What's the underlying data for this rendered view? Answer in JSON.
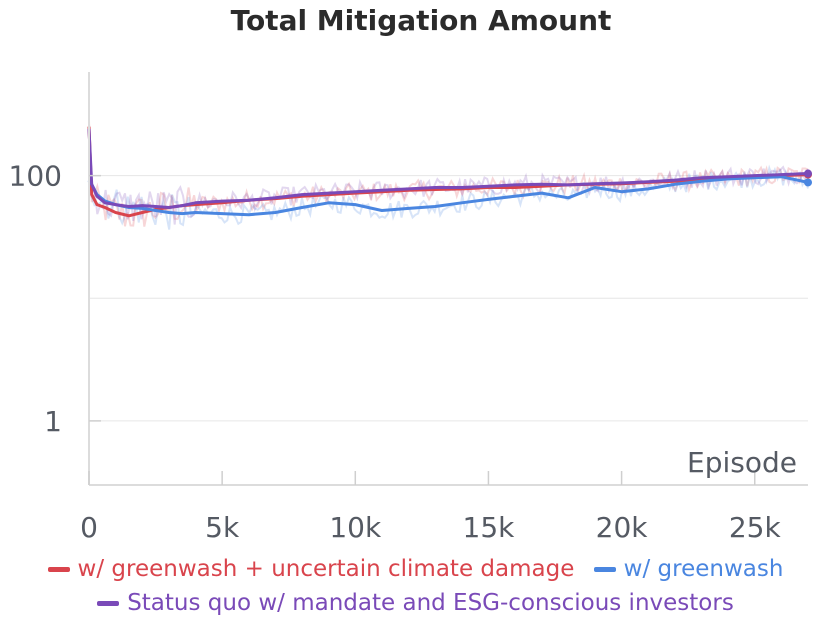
{
  "chart_data": {
    "type": "line",
    "title": "Total Mitigation Amount",
    "xlabel": "Episode",
    "ylabel": "",
    "yscale": "log",
    "xlim": [
      0,
      27000
    ],
    "ylim": [
      0.3,
      700
    ],
    "x_ticks": [
      0,
      5000,
      10000,
      15000,
      20000,
      25000
    ],
    "x_tick_labels": [
      "0",
      "5k",
      "10k",
      "15k",
      "20k",
      "25k"
    ],
    "y_ticks": [
      1,
      100
    ],
    "y_tick_labels": [
      "1",
      "100"
    ],
    "y_minor_gridlines": [
      10
    ],
    "grid": true,
    "legend_position": "bottom",
    "series": [
      {
        "name": "w/ greenwash + uncertain climate damage",
        "color": "#d9444c",
        "x": [
          0,
          100,
          300,
          600,
          1000,
          1500,
          2000,
          2500,
          3000,
          3500,
          4000,
          5000,
          6000,
          7000,
          8000,
          9000,
          10000,
          11000,
          12000,
          13000,
          14000,
          15000,
          16000,
          17000,
          18000,
          19000,
          20000,
          21000,
          22000,
          23000,
          24000,
          25000,
          26000,
          27000
        ],
        "values": [
          250,
          70,
          58,
          55,
          50,
          47,
          50,
          53,
          55,
          57,
          58,
          60,
          63,
          65,
          68,
          70,
          72,
          74,
          76,
          77,
          78,
          80,
          80,
          82,
          84,
          85,
          86,
          88,
          90,
          92,
          95,
          98,
          100,
          102
        ]
      },
      {
        "name": "w/ greenwash",
        "color": "#4a86e0",
        "x": [
          0,
          100,
          300,
          600,
          1000,
          1500,
          2000,
          2500,
          3000,
          3500,
          4000,
          5000,
          6000,
          7000,
          8000,
          9000,
          10000,
          11000,
          12000,
          13000,
          14000,
          15000,
          16000,
          17000,
          18000,
          19000,
          20000,
          21000,
          22000,
          23000,
          24000,
          25000,
          26000,
          27000
        ],
        "values": [
          90,
          85,
          70,
          62,
          58,
          55,
          54,
          52,
          50,
          49,
          50,
          49,
          48,
          50,
          55,
          60,
          58,
          52,
          54,
          56,
          60,
          64,
          68,
          72,
          66,
          80,
          74,
          78,
          85,
          90,
          94,
          96,
          98,
          88
        ]
      },
      {
        "name": "Status quo w/ mandate and ESG-conscious investors",
        "color": "#7a4ab8",
        "x": [
          0,
          100,
          300,
          600,
          1000,
          1500,
          2000,
          2500,
          3000,
          3500,
          4000,
          5000,
          6000,
          7000,
          8000,
          9000,
          10000,
          11000,
          12000,
          13000,
          14000,
          15000,
          16000,
          17000,
          18000,
          19000,
          20000,
          21000,
          22000,
          23000,
          24000,
          25000,
          26000,
          27000
        ],
        "values": [
          240,
          85,
          68,
          60,
          58,
          56,
          57,
          56,
          55,
          57,
          60,
          62,
          63,
          66,
          70,
          72,
          74,
          76,
          78,
          80,
          80,
          82,
          84,
          85,
          84,
          86,
          87,
          89,
          92,
          96,
          98,
          100,
          102,
          104
        ]
      }
    ]
  }
}
